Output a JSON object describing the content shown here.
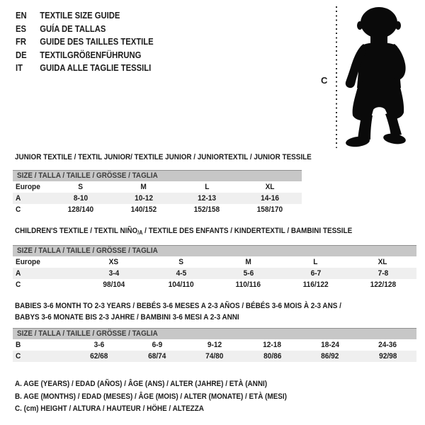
{
  "colors": {
    "background": "#ffffff",
    "text": "#1c1c1c",
    "table_header_bg": "#c7c7c7",
    "table_header_text": "#3d3d3d",
    "row_alt_bg": "#efefef",
    "silhouette": "#0a0a0a"
  },
  "language_list": [
    {
      "code": "EN",
      "title": "TEXTILE SIZE GUIDE"
    },
    {
      "code": "ES",
      "title": "GUÍA DE TALLAS"
    },
    {
      "code": "FR",
      "title": "GUIDE DES TAILLES TEXTILE"
    },
    {
      "code": "DE",
      "title": "TEXTILGRÖßENFÜHRUNG"
    },
    {
      "code": "IT",
      "title": "GUIDA ALLE TAGLIE TESSILI"
    }
  ],
  "figure": {
    "icon": "baby-silhouette",
    "measure_label": "C"
  },
  "tables": [
    {
      "title": "JUNIOR TEXTILE / TEXTIL JUNIOR/ TEXTILE JUNIOR / JUNIORTEXTIL / JUNIOR TESSILE",
      "size_header": "SIZE / TALLA / TAILLE / GRÖSSE / TAGLIA",
      "rows": [
        [
          "Europe",
          "S",
          "M",
          "L",
          "XL"
        ],
        [
          "A",
          "8-10",
          "10-12",
          "12-13",
          "14-16"
        ],
        [
          "C",
          "128/140",
          "140/152",
          "152/158",
          "158/170"
        ]
      ]
    },
    {
      "title_part1": "CHILDREN'S TEXTILE / TEXTIL NIÑO",
      "title_sub": "/A",
      "title_part2": " / TEXTILE DES ENFANTS / KINDERTEXTIL / BAMBINI TESSILE",
      "size_header": "SIZE / TALLA / TAILLE / GRÖSSE / TAGLIA",
      "rows": [
        [
          "Europe",
          "XS",
          "S",
          "M",
          "L",
          "XL"
        ],
        [
          "A",
          "3-4",
          "4-5",
          "5-6",
          "6-7",
          "7-8"
        ],
        [
          "C",
          "98/104",
          "104/110",
          "110/116",
          "116/122",
          "122/128"
        ]
      ]
    },
    {
      "title_line1": "BABIES 3-6 MONTH TO 2-3 YEARS / BEBÉS 3-6 MESES A 2-3 AÑOS / BÉBÉS 3-6 MOIS À 2-3 ANS /",
      "title_line2": "BABYS 3-6 MONATE BIS 2-3 JAHRE / BAMBINI 3-6 MESI A 2-3 ANNI",
      "size_header": "SIZE / TALLA / TAILLE / GRÖSSE / TAGLIA",
      "rows": [
        [
          "B",
          "3-6",
          "6-9",
          "9-12",
          "12-18",
          "18-24",
          "24-36"
        ],
        [
          "C",
          "62/68",
          "68/74",
          "74/80",
          "80/86",
          "86/92",
          "92/98"
        ]
      ]
    }
  ],
  "notes": [
    "A. AGE (YEARS) / EDAD (AÑOS) / ÂGE (ANS) / ALTER (JAHRE) / ETÀ (ANNI)",
    "B. AGE (MONTHS) / EDAD (MESES) / ÂGE (MOIS) / ALTER (MONATE) / ETÀ (MESI)",
    "C. (cm) HEIGHT / ALTURA / HAUTEUR / HÖHE / ALTEZZA"
  ]
}
